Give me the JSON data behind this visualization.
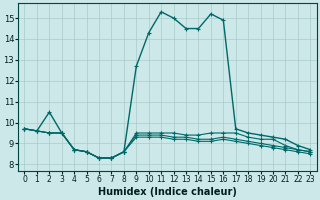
{
  "xlabel": "Humidex (Indice chaleur)",
  "bg_color": "#cce8e8",
  "grid_color": "#aacccc",
  "line_color": "#006868",
  "xlim": [
    -0.5,
    23.5
  ],
  "ylim": [
    7.7,
    15.7
  ],
  "xticks": [
    0,
    1,
    2,
    3,
    4,
    5,
    6,
    7,
    8,
    9,
    10,
    11,
    12,
    13,
    14,
    15,
    16,
    17,
    18,
    19,
    20,
    21,
    22,
    23
  ],
  "yticks": [
    8,
    9,
    10,
    11,
    12,
    13,
    14,
    15
  ],
  "series": [
    {
      "x": [
        0,
        1,
        2,
        3,
        4,
        5,
        6,
        7,
        8,
        9,
        10,
        11,
        12,
        13,
        14,
        15,
        16,
        17,
        18,
        19,
        20,
        21,
        22,
        23
      ],
      "y": [
        9.7,
        9.6,
        10.5,
        9.5,
        8.7,
        8.6,
        8.3,
        8.3,
        8.6,
        12.7,
        14.3,
        15.3,
        15.0,
        14.5,
        14.5,
        15.2,
        14.9,
        9.7,
        9.5,
        9.4,
        9.3,
        9.2,
        8.9,
        8.7
      ],
      "lw": 1.0
    },
    {
      "x": [
        0,
        1,
        2,
        3,
        4,
        5,
        6,
        7,
        8,
        9,
        10,
        11,
        12,
        13,
        14,
        15,
        16,
        17,
        18,
        19,
        20,
        21,
        22,
        23
      ],
      "y": [
        9.7,
        9.6,
        9.5,
        9.5,
        8.7,
        8.6,
        8.3,
        8.3,
        8.6,
        9.5,
        9.5,
        9.5,
        9.5,
        9.4,
        9.4,
        9.5,
        9.5,
        9.5,
        9.3,
        9.2,
        9.2,
        8.9,
        8.7,
        8.6
      ],
      "lw": 0.8
    },
    {
      "x": [
        0,
        1,
        2,
        3,
        4,
        5,
        6,
        7,
        8,
        9,
        10,
        11,
        12,
        13,
        14,
        15,
        16,
        17,
        18,
        19,
        20,
        21,
        22,
        23
      ],
      "y": [
        9.7,
        9.6,
        9.5,
        9.5,
        8.7,
        8.6,
        8.3,
        8.3,
        8.6,
        9.4,
        9.4,
        9.4,
        9.3,
        9.3,
        9.2,
        9.2,
        9.3,
        9.2,
        9.1,
        9.0,
        8.9,
        8.8,
        8.7,
        8.6
      ],
      "lw": 0.8
    },
    {
      "x": [
        0,
        1,
        2,
        3,
        4,
        5,
        6,
        7,
        8,
        9,
        10,
        11,
        12,
        13,
        14,
        15,
        16,
        17,
        18,
        19,
        20,
        21,
        22,
        23
      ],
      "y": [
        9.7,
        9.6,
        9.5,
        9.5,
        8.7,
        8.6,
        8.3,
        8.3,
        8.6,
        9.3,
        9.3,
        9.3,
        9.2,
        9.2,
        9.1,
        9.1,
        9.2,
        9.1,
        9.0,
        8.9,
        8.8,
        8.7,
        8.6,
        8.5
      ],
      "lw": 0.8
    }
  ]
}
